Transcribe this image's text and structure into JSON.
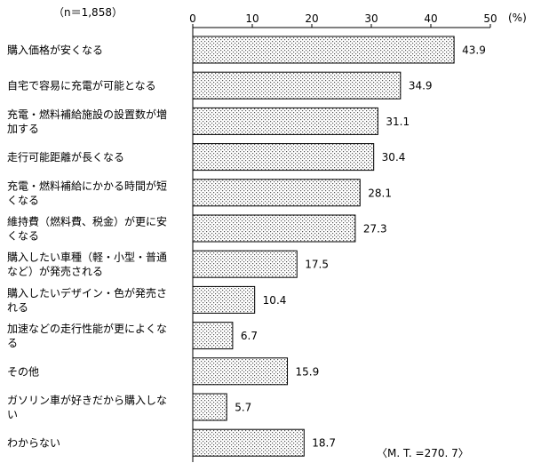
{
  "chart_data": {
    "type": "bar",
    "orientation": "horizontal",
    "n_label": "（n＝1,858）",
    "unit_label": "(%)",
    "xlim": [
      0,
      50
    ],
    "xticks": [
      0,
      10,
      20,
      30,
      40,
      50
    ],
    "categories": [
      [
        "購入価格が安くなる"
      ],
      [
        "自宅で容易に充電が可能となる"
      ],
      [
        "充電・燃料補給施設の設置数が増",
        "加する"
      ],
      [
        "走行可能距離が長くなる"
      ],
      [
        "充電・燃料補給にかかる時間が短",
        "くなる"
      ],
      [
        "維持費（燃料費、税金）が更に安",
        "くなる"
      ],
      [
        "購入したい車種（軽・小型・普通",
        "など）が発売される"
      ],
      [
        "購入したいデザイン・色が発売さ",
        "れる"
      ],
      [
        "加速などの走行性能が更によくな",
        "る"
      ],
      [
        "その他"
      ],
      [
        "ガソリン車が好きだから購入しな",
        "い"
      ],
      [
        "わからない"
      ]
    ],
    "values": [
      43.9,
      34.9,
      31.1,
      30.4,
      28.1,
      27.3,
      17.5,
      10.4,
      6.7,
      15.9,
      5.7,
      18.7
    ],
    "value_labels": [
      "43.9",
      "34.9",
      "31.1",
      "30.4",
      "28.1",
      "27.3",
      "17.5",
      "10.4",
      "6.7",
      "15.9",
      "5.7",
      "18.7"
    ],
    "annotation": "〈M. T. =270. 7〉",
    "bar_pattern": "dotted"
  }
}
